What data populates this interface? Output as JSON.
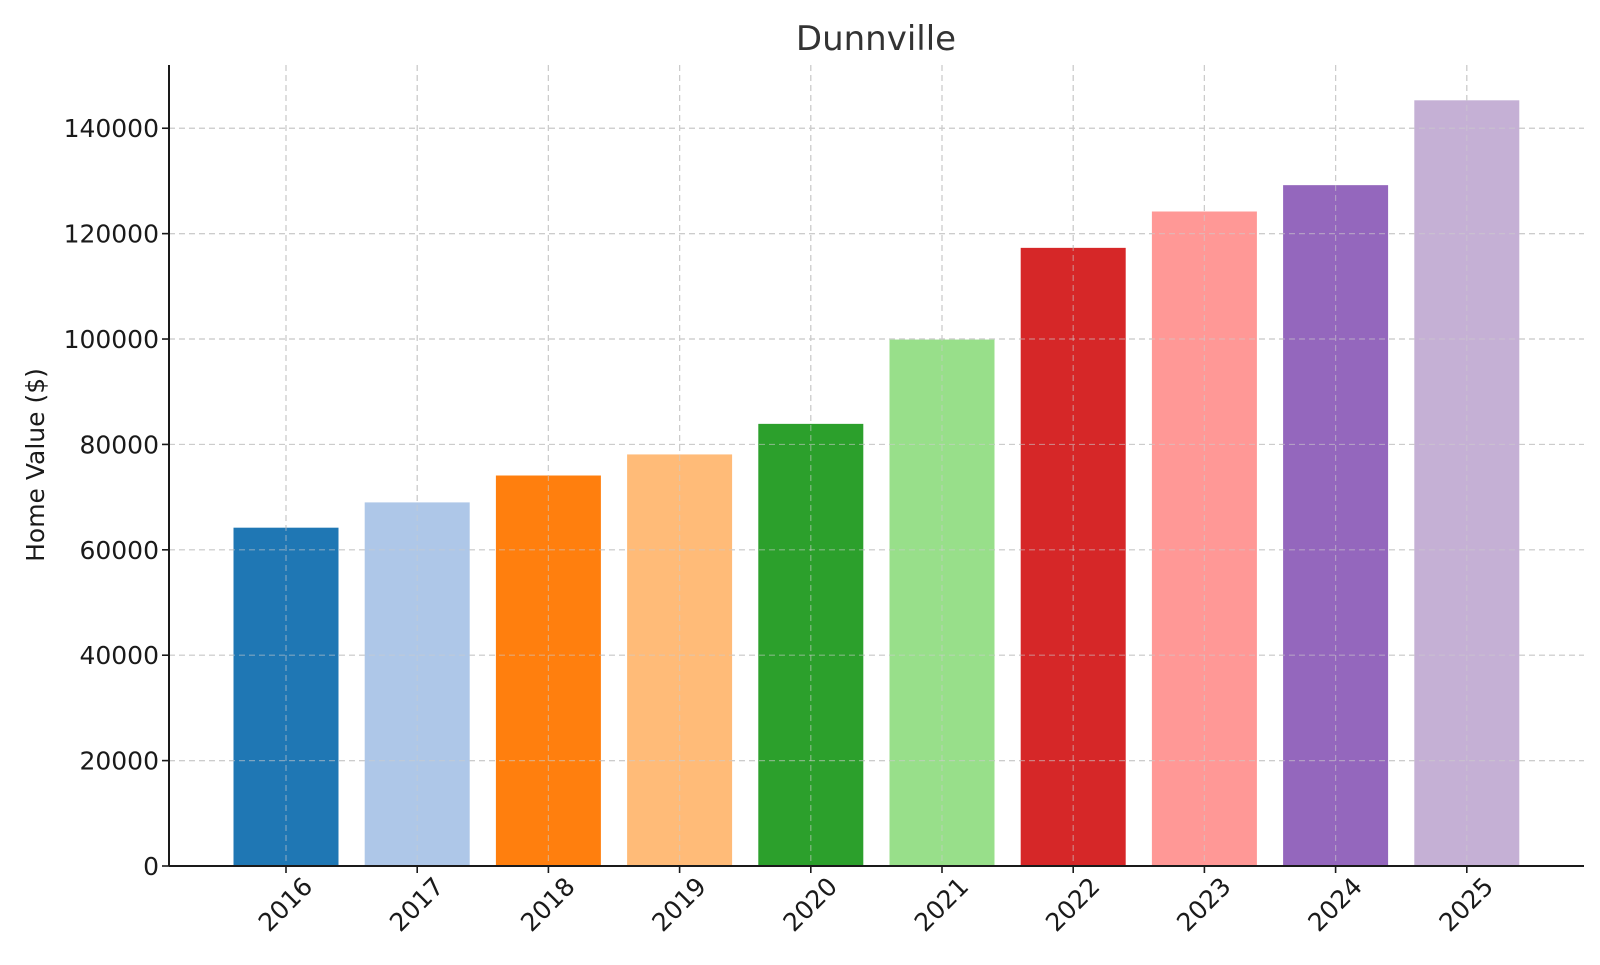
{
  "chart_data": {
    "type": "bar",
    "title": "Dunnville",
    "xlabel": "",
    "ylabel": "Home Value ($)",
    "categories": [
      "2016",
      "2017",
      "2018",
      "2019",
      "2020",
      "2021",
      "2022",
      "2023",
      "2024",
      "2025"
    ],
    "values": [
      64200,
      69000,
      74100,
      78100,
      83900,
      99900,
      117300,
      124200,
      129200,
      145300
    ],
    "colors": [
      "#1f77b4",
      "#aec7e8",
      "#ff7f0e",
      "#ffbb78",
      "#2ca02c",
      "#98df8a",
      "#d62728",
      "#ff9896",
      "#9467bd",
      "#c5b0d5"
    ],
    "ylim": [
      0,
      152000
    ],
    "yticks": [
      0,
      20000,
      40000,
      60000,
      80000,
      100000,
      120000,
      140000
    ],
    "grid": true,
    "legend": "none"
  }
}
